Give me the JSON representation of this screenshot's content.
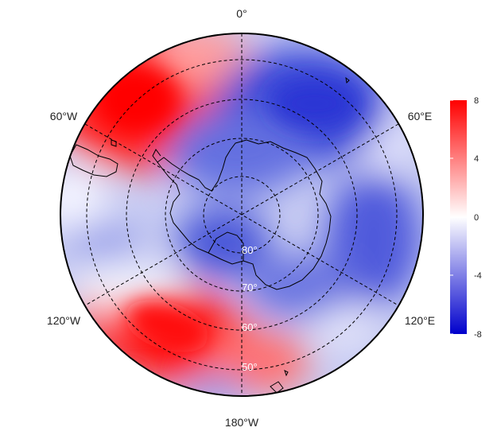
{
  "map": {
    "projection": "south-polar-stereographic",
    "meridian_labels": [
      "0°",
      "60°E",
      "120°E",
      "180°W",
      "120°W",
      "60°W"
    ],
    "latitude_labels": [
      "80°",
      "70°",
      "60°",
      "50°"
    ],
    "grid": "dashed"
  },
  "colorbar": {
    "ticks": [
      "8",
      "4",
      "0",
      "-4",
      "-8"
    ],
    "values": [
      8,
      4,
      0,
      -4,
      -8
    ],
    "min": -8,
    "max": 8,
    "colors": {
      "high": "#ff0000",
      "mid": "#ffffff",
      "low": "#0000cc"
    }
  },
  "colors": {
    "positive": "#ff1a1a",
    "negative": "#2b3bd6",
    "coastline": "#000000",
    "border": "#000000"
  }
}
